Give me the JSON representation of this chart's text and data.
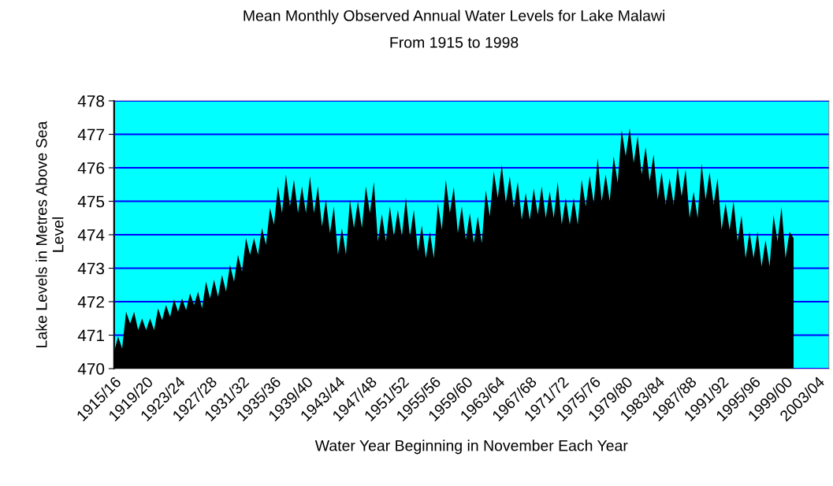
{
  "chart_data": {
    "type": "area",
    "title": "Mean Monthly Observed Annual Water Levels for Lake Malawi",
    "subtitle": "From 1915 to 1998",
    "xlabel": "Water Year Beginning in November Each Year",
    "ylabel": "Lake Levels in Metres Above Sea\nLevel",
    "x": [
      "1915-11",
      "1916-05",
      "1916-11",
      "1917-05",
      "1917-11",
      "1918-05",
      "1918-11",
      "1919-05",
      "1919-11",
      "1920-05",
      "1920-11",
      "1921-05",
      "1921-11",
      "1922-05",
      "1922-11",
      "1923-05",
      "1923-11",
      "1924-05",
      "1924-11",
      "1925-05",
      "1925-11",
      "1926-05",
      "1926-11",
      "1927-05",
      "1927-11",
      "1928-05",
      "1928-11",
      "1929-05",
      "1929-11",
      "1930-05",
      "1930-11",
      "1931-05",
      "1931-11",
      "1932-05",
      "1932-11",
      "1933-05",
      "1933-11",
      "1934-05",
      "1934-11",
      "1935-05",
      "1935-11",
      "1936-05",
      "1936-11",
      "1937-05",
      "1937-11",
      "1938-05",
      "1938-11",
      "1939-05",
      "1939-11",
      "1940-05",
      "1940-11",
      "1941-05",
      "1941-11",
      "1942-05",
      "1942-11",
      "1943-05",
      "1943-11",
      "1944-05",
      "1944-11",
      "1945-05",
      "1945-11",
      "1946-05",
      "1946-11",
      "1947-05",
      "1947-11",
      "1948-05",
      "1948-11",
      "1949-05",
      "1949-11",
      "1950-05",
      "1950-11",
      "1951-05",
      "1951-11",
      "1952-05",
      "1952-11",
      "1953-05",
      "1953-11",
      "1954-05",
      "1954-11",
      "1955-05",
      "1955-11",
      "1956-05",
      "1956-11",
      "1957-05",
      "1957-11",
      "1958-05",
      "1958-11",
      "1959-05",
      "1959-11",
      "1960-05",
      "1960-11",
      "1961-05",
      "1961-11",
      "1962-05",
      "1962-11",
      "1963-05",
      "1963-11",
      "1964-05",
      "1964-11",
      "1965-05",
      "1965-11",
      "1966-05",
      "1966-11",
      "1967-05",
      "1967-11",
      "1968-05",
      "1968-11",
      "1969-05",
      "1969-11",
      "1970-05",
      "1970-11",
      "1971-05",
      "1971-11",
      "1972-05",
      "1972-11",
      "1973-05",
      "1973-11",
      "1974-05",
      "1974-11",
      "1975-05",
      "1975-11",
      "1976-05",
      "1976-11",
      "1977-05",
      "1977-11",
      "1978-05",
      "1978-11",
      "1979-05",
      "1979-11",
      "1980-05",
      "1980-11",
      "1981-05",
      "1981-11",
      "1982-05",
      "1982-11",
      "1983-05",
      "1983-11",
      "1984-05",
      "1984-11",
      "1985-05",
      "1985-11",
      "1986-05",
      "1986-11",
      "1987-05",
      "1987-11",
      "1988-05",
      "1988-11",
      "1989-05",
      "1989-11",
      "1990-05",
      "1990-11",
      "1991-05",
      "1991-11",
      "1992-05",
      "1992-11",
      "1993-05",
      "1993-11",
      "1994-05",
      "1994-11",
      "1995-05",
      "1995-11",
      "1996-05",
      "1996-11",
      "1997-05",
      "1997-11",
      "1998-05",
      "1998-11",
      "1999-05",
      "1999-11",
      "2000-05",
      "2000-11"
    ],
    "series": [
      {
        "color": "#000000",
        "values": [
          470.5,
          470.96,
          470.6,
          471.7,
          471.35,
          471.7,
          471.15,
          471.5,
          471.15,
          471.5,
          471.15,
          471.8,
          471.45,
          471.9,
          471.55,
          472.07,
          471.7,
          472.1,
          471.75,
          472.25,
          471.9,
          472.3,
          471.8,
          472.6,
          472.1,
          472.66,
          472.15,
          472.8,
          472.3,
          473.1,
          472.6,
          473.4,
          472.9,
          473.9,
          473.4,
          473.9,
          473.4,
          474.2,
          473.7,
          474.8,
          474.3,
          475.45,
          474.65,
          475.8,
          474.85,
          475.65,
          474.65,
          475.45,
          474.65,
          475.75,
          474.65,
          475.45,
          474.25,
          475.05,
          474.05,
          474.85,
          473.4,
          474.2,
          473.4,
          475.05,
          474.2,
          475.0,
          474.2,
          475.45,
          474.65,
          475.58,
          473.8,
          474.62,
          473.8,
          474.85,
          473.95,
          474.74,
          473.95,
          475.11,
          473.95,
          474.74,
          473.5,
          474.28,
          473.3,
          474.1,
          473.3,
          474.94,
          474.15,
          475.65,
          474.65,
          475.43,
          474.05,
          474.85,
          473.85,
          474.65,
          473.75,
          474.55,
          473.75,
          475.33,
          474.55,
          475.9,
          475.1,
          476.09,
          474.95,
          475.75,
          474.8,
          475.58,
          474.45,
          475.25,
          474.45,
          475.38,
          474.6,
          475.45,
          474.5,
          475.3,
          474.5,
          475.58,
          474.3,
          475.1,
          474.3,
          475.1,
          474.3,
          475.65,
          474.85,
          475.76,
          474.95,
          476.29,
          475.0,
          475.8,
          475.0,
          476.35,
          475.55,
          477.13,
          476.35,
          477.18,
          476.15,
          476.95,
          475.8,
          476.62,
          475.6,
          476.4,
          475.05,
          475.87,
          474.9,
          475.69,
          474.9,
          476.03,
          475.15,
          475.95,
          474.5,
          475.29,
          474.5,
          476.13,
          475.05,
          475.87,
          474.9,
          475.69,
          474.15,
          474.94,
          474.15,
          475.0,
          473.8,
          474.58,
          473.3,
          474.09,
          473.3,
          474.1,
          473.05,
          473.84,
          473.05,
          474.59,
          473.8,
          474.83,
          473.3,
          474.09,
          473.9
        ]
      }
    ],
    "xlim": [
      "1915-11",
      "2005-04"
    ],
    "xticks": [
      {
        "value": "1915-11",
        "label": "1915/16"
      },
      {
        "value": "1919-11",
        "label": "1919/20"
      },
      {
        "value": "1923-11",
        "label": "1923/24"
      },
      {
        "value": "1927-11",
        "label": "1927/28"
      },
      {
        "value": "1931-11",
        "label": "1931/32"
      },
      {
        "value": "1935-11",
        "label": "1935/36"
      },
      {
        "value": "1939-11",
        "label": "1939/40"
      },
      {
        "value": "1943-11",
        "label": "1943/44"
      },
      {
        "value": "1947-11",
        "label": "1947/48"
      },
      {
        "value": "1951-11",
        "label": "1951/52"
      },
      {
        "value": "1955-11",
        "label": "1955/56"
      },
      {
        "value": "1959-11",
        "label": "1959/60"
      },
      {
        "value": "1963-11",
        "label": "1963/64"
      },
      {
        "value": "1967-11",
        "label": "1967/68"
      },
      {
        "value": "1971-11",
        "label": "1971/72"
      },
      {
        "value": "1975-11",
        "label": "1975/76"
      },
      {
        "value": "1979-11",
        "label": "1979/80"
      },
      {
        "value": "1983-11",
        "label": "1983/84"
      },
      {
        "value": "1987-11",
        "label": "1987/88"
      },
      {
        "value": "1991-11",
        "label": "1991/92"
      },
      {
        "value": "1995-11",
        "label": "1995/96"
      },
      {
        "value": "1999-11",
        "label": "1999/00"
      },
      {
        "value": "2003-11",
        "label": "2003/04"
      }
    ],
    "ylim": [
      470,
      478
    ],
    "yticks": [
      470,
      471,
      472,
      473,
      474,
      475,
      476,
      477,
      478
    ],
    "bands": [
      {
        "axis": "y",
        "from": 470,
        "to": 478,
        "color": "#00ffff"
      }
    ],
    "grid": "y",
    "legend": false
  }
}
